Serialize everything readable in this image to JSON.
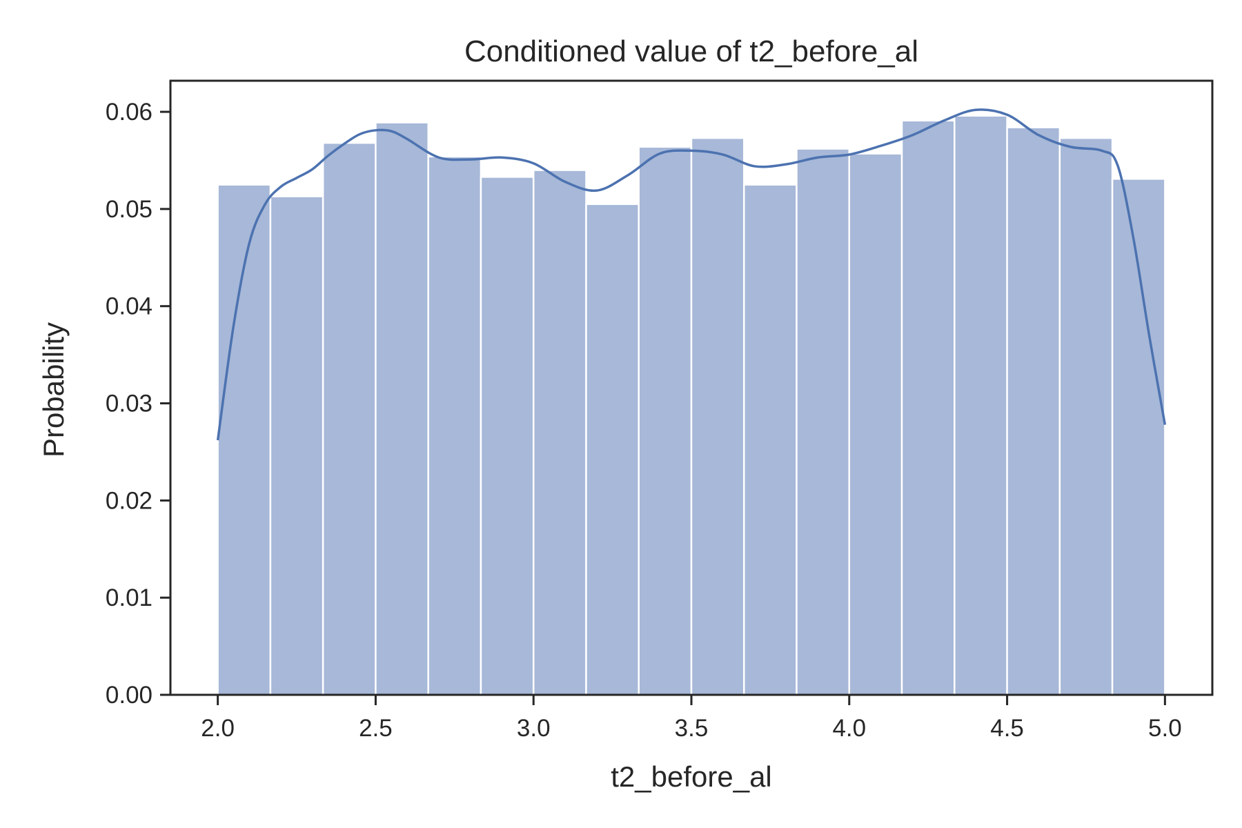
{
  "chart_data": {
    "type": "bar",
    "title": "Conditioned value of t2_before_al",
    "xlabel": "t2_before_al",
    "ylabel": "Probability",
    "xlim": [
      1.85,
      5.15
    ],
    "ylim": [
      0,
      0.0632
    ],
    "xticks": [
      "2.0",
      "2.5",
      "3.0",
      "3.5",
      "4.0",
      "4.5",
      "5.0"
    ],
    "yticks": [
      "0.00",
      "0.01",
      "0.02",
      "0.03",
      "0.04",
      "0.05",
      "0.06"
    ],
    "grid": false,
    "bin_edges": [
      2.0,
      2.1667,
      2.3333,
      2.5,
      2.6667,
      2.8333,
      3.0,
      3.1667,
      3.3333,
      3.5,
      3.6667,
      3.8333,
      4.0,
      4.1667,
      4.3333,
      4.5,
      4.6667,
      4.8333,
      5.0
    ],
    "values": [
      0.0525,
      0.0513,
      0.0568,
      0.0589,
      0.0554,
      0.0533,
      0.054,
      0.0505,
      0.0564,
      0.0573,
      0.0525,
      0.0562,
      0.0557,
      0.0591,
      0.0596,
      0.0584,
      0.0573,
      0.0531
    ],
    "kde": {
      "x": [
        2.0,
        2.05,
        2.1,
        2.15,
        2.2,
        2.25,
        2.3,
        2.35,
        2.4,
        2.45,
        2.5,
        2.55,
        2.6,
        2.7,
        2.8,
        2.9,
        3.0,
        3.1,
        3.2,
        3.3,
        3.4,
        3.5,
        3.6,
        3.7,
        3.8,
        3.9,
        4.0,
        4.1,
        4.2,
        4.3,
        4.4,
        4.5,
        4.6,
        4.7,
        4.8,
        4.85,
        4.9,
        4.95,
        5.0
      ],
      "y": [
        0.0262,
        0.038,
        0.0465,
        0.0505,
        0.0523,
        0.0532,
        0.0541,
        0.0555,
        0.0567,
        0.0577,
        0.0581,
        0.058,
        0.0572,
        0.0553,
        0.0551,
        0.0553,
        0.0547,
        0.0528,
        0.0519,
        0.0535,
        0.0557,
        0.056,
        0.0556,
        0.0544,
        0.0546,
        0.0553,
        0.0556,
        0.0565,
        0.0576,
        0.0591,
        0.0602,
        0.0597,
        0.0576,
        0.0564,
        0.056,
        0.0545,
        0.047,
        0.037,
        0.0278
      ]
    },
    "colors": {
      "bar_fill": "#a7b8d8",
      "bar_edge": "#ffffff",
      "kde_line": "#4c72b0",
      "axes": "#262626"
    }
  }
}
